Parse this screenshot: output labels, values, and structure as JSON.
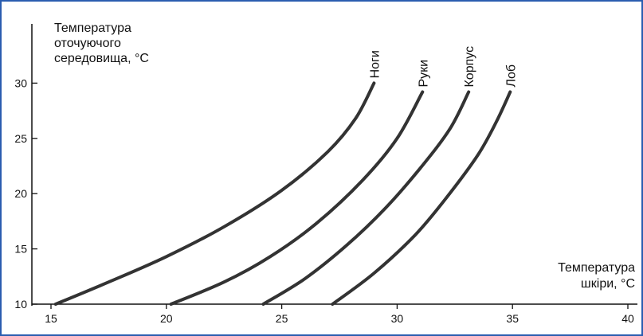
{
  "chart_data": {
    "type": "line",
    "ylabel_lines": [
      "Температура",
      "оточуючого",
      "середовища, °С"
    ],
    "xlabel_lines": [
      "Температура",
      "шкіри, °С"
    ],
    "xlim": [
      15,
      40
    ],
    "ylim": [
      10,
      35
    ],
    "x_ticks": [
      15,
      20,
      25,
      30,
      35,
      40
    ],
    "y_ticks": [
      10,
      15,
      20,
      25,
      30
    ],
    "series": [
      {
        "name": "Ноги",
        "x": [
          15.2,
          17.5,
          20.0,
          22.5,
          25.0,
          27.0,
          28.2,
          29.0
        ],
        "y": [
          10,
          12,
          14.3,
          17,
          20.3,
          23.8,
          26.8,
          30
        ]
      },
      {
        "name": "Руки",
        "x": [
          20.2,
          22.5,
          24.5,
          26.5,
          28.5,
          30.0,
          31.1
        ],
        "y": [
          10,
          12,
          14.3,
          17.3,
          21.2,
          25,
          29.2
        ]
      },
      {
        "name": "Корпус",
        "x": [
          24.2,
          26.0,
          27.8,
          29.5,
          31.0,
          32.3,
          33.1
        ],
        "y": [
          10,
          12.3,
          15.3,
          18.7,
          22.3,
          25.9,
          29.2
        ]
      },
      {
        "name": "Лоб",
        "x": [
          27.2,
          29.0,
          30.8,
          32.2,
          33.5,
          34.3,
          34.9
        ],
        "y": [
          10,
          12.8,
          16.3,
          19.8,
          23.5,
          26.5,
          29.2
        ]
      }
    ]
  }
}
